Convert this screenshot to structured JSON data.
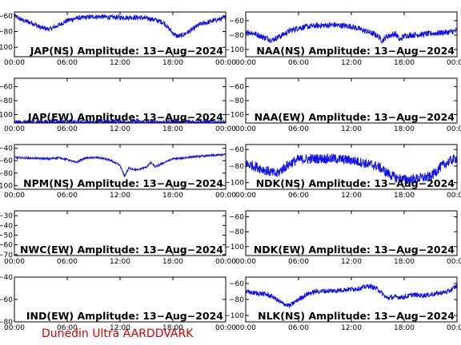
{
  "footer": "Dunedin Ultra AARDDVARK",
  "colors": {
    "trace": "#1010ee",
    "trace_alt": "#ff1010",
    "axis": "#000000",
    "footer": "#d40000"
  },
  "x_ticks": [
    "00:00",
    "06:00",
    "12:00",
    "18:00",
    "00:00"
  ],
  "chart_data": [
    {
      "type": "line",
      "title": "JAP(NS) Amplitude: 13−Aug−2024",
      "yticks": [
        "−60",
        "−80",
        "−100"
      ],
      "ylim": [
        -112,
        -55
      ],
      "xlim": [
        0,
        24
      ],
      "x": [
        0,
        1,
        2,
        3,
        4,
        5,
        6,
        7,
        8,
        9,
        10,
        11,
        12,
        13,
        14,
        15,
        16,
        17,
        18,
        18.5,
        19,
        20,
        21,
        22,
        23,
        23.5,
        24
      ],
      "series": [
        {
          "values": [
            -60,
            -66,
            -69,
            -75,
            -77,
            -72,
            -66,
            -63,
            -62,
            -61,
            -61,
            -62,
            -62,
            -62,
            -62,
            -63,
            -65,
            -69,
            -82,
            -86,
            -85,
            -79,
            -71,
            -68,
            -65,
            -64,
            -62
          ],
          "noise": 3
        }
      ]
    },
    {
      "type": "line",
      "title": "NAA(NS) Amplitude: 13−Aug−2024",
      "yticks": [
        "−60",
        "−80",
        "−100"
      ],
      "ylim": [
        -110,
        -48
      ],
      "xlim": [
        0,
        24
      ],
      "x": [
        0,
        1,
        2,
        3,
        4,
        5,
        6,
        8,
        10,
        12,
        13,
        14,
        15,
        15.5,
        16,
        17,
        17.5,
        18,
        19,
        20,
        21,
        22,
        23,
        24
      ],
      "series": [
        {
          "values": [
            -75,
            -78,
            -83,
            -87,
            -81,
            -74,
            -70,
            -67,
            -66,
            -68,
            -72,
            -76,
            -81,
            -88,
            -82,
            -78,
            -87,
            -81,
            -80,
            -79,
            -78,
            -77,
            -76,
            -74
          ],
          "noise": 4
        }
      ]
    },
    {
      "type": "line",
      "title": "JAP(EW) Amplitude: 13−Aug−2024",
      "yticks": [
        "−60",
        "−80",
        "−100"
      ],
      "ylim": [
        -112,
        -48
      ],
      "xlim": [
        0,
        24
      ],
      "x": [
        0,
        4,
        8,
        12,
        16,
        20,
        24
      ],
      "series": [
        {
          "values": [
            -111,
            -110,
            -111,
            -110,
            -111,
            -110,
            -111
          ],
          "noise": 3
        }
      ]
    },
    {
      "type": "line",
      "title": "NAA(EW) Amplitude: 13−Aug−2024",
      "yticks": [
        "−60",
        "−80",
        "−100"
      ],
      "ylim": [
        -112,
        -48
      ],
      "xlim": [
        0,
        24
      ],
      "x": [],
      "series": []
    },
    {
      "type": "line",
      "title": "NPM(NS) Amplitude: 13−Aug−2024",
      "yticks": [
        "−40",
        "−60",
        "−80",
        "−100"
      ],
      "ylim": [
        -106,
        -34
      ],
      "xlim": [
        0,
        24
      ],
      "x": [
        0,
        2,
        4,
        5,
        6,
        7,
        8,
        9,
        10,
        11,
        12,
        12.5,
        13,
        14,
        15,
        15.5,
        16,
        17,
        18,
        19,
        20,
        22,
        24
      ],
      "series": [
        {
          "values": [
            -55,
            -56,
            -57,
            -55,
            -58,
            -63,
            -56,
            -55,
            -56,
            -60,
            -68,
            -85,
            -72,
            -75,
            -70,
            -63,
            -70,
            -63,
            -57,
            -56,
            -54,
            -52,
            -50
          ],
          "noise": 1.5
        }
      ]
    },
    {
      "type": "line",
      "title": "NDK(NS) Amplitude: 13−Aug−2024",
      "yticks": [
        "−60",
        "−80",
        "−100"
      ],
      "ylim": [
        -108,
        -54
      ],
      "xlim": [
        0,
        24
      ],
      "x": [
        0,
        1,
        2,
        3,
        3.5,
        4,
        5,
        6,
        8,
        10,
        12,
        13,
        14,
        15,
        16,
        17,
        18,
        19,
        20,
        21,
        22,
        23,
        24
      ],
      "series": [
        {
          "values": [
            -77,
            -80,
            -84,
            -88,
            -90,
            -85,
            -77,
            -72,
            -71,
            -71,
            -73,
            -75,
            -78,
            -80,
            -88,
            -94,
            -96,
            -96,
            -94,
            -93,
            -82,
            -75,
            -70
          ],
          "noise": 6
        }
      ]
    },
    {
      "type": "line",
      "title": "NWC(EW) Amplitude: 13−Aug−2024",
      "yticks": [
        "−30",
        "−40",
        "−50",
        "−60",
        "−70"
      ],
      "ylim": [
        -71,
        -25
      ],
      "xlim": [
        0,
        24
      ],
      "x": [],
      "series": []
    },
    {
      "type": "line",
      "title": "NDK(EW) Amplitude: 13−Aug−2024",
      "yticks": [
        "−60",
        "−80",
        "−100"
      ],
      "ylim": [
        -112,
        -52
      ],
      "xlim": [
        0,
        24
      ],
      "x": [],
      "series": []
    },
    {
      "type": "line",
      "title": "IND(EW) Amplitude: 13−Aug−2024",
      "yticks": [
        "−40",
        "−60",
        "−80"
      ],
      "ylim": [
        -80,
        -40
      ],
      "xlim": [
        0,
        24
      ],
      "x": [],
      "series": []
    },
    {
      "type": "line",
      "title": "NLK(NS) Amplitude: 13−Aug−2024",
      "yticks": [
        "−60",
        "−80",
        "−100"
      ],
      "ylim": [
        -108,
        -52
      ],
      "xlim": [
        0,
        24
      ],
      "x": [
        0,
        1,
        2,
        3,
        4,
        5,
        6,
        7,
        8,
        10,
        12,
        13,
        14,
        15,
        16,
        17,
        18,
        19,
        20,
        21,
        22,
        23,
        24
      ],
      "series": [
        {
          "values": [
            -70,
            -72,
            -73,
            -76,
            -84,
            -88,
            -80,
            -73,
            -70,
            -69,
            -67,
            -66,
            -63,
            -67,
            -78,
            -77,
            -77,
            -74,
            -75,
            -74,
            -72,
            -70,
            -63
          ],
          "noise": 3
        }
      ]
    }
  ]
}
